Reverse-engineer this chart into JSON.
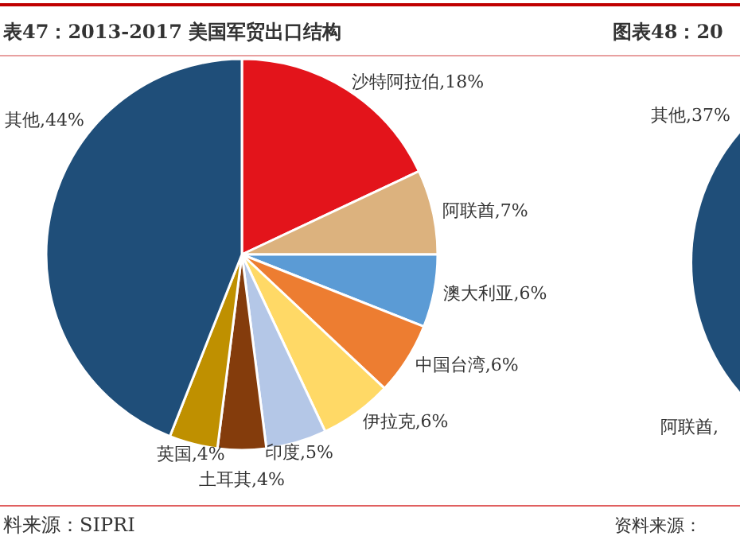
{
  "chart_data": [
    {
      "type": "pie",
      "title": "表47：2013-2017 美国军贸出口结构",
      "categories": [
        "沙特阿拉伯",
        "阿联酋",
        "澳大利亚",
        "中国台湾",
        "伊拉克",
        "印度",
        "土耳其",
        "英国",
        "其他"
      ],
      "values": [
        18,
        7,
        6,
        6,
        6,
        5,
        4,
        4,
        44
      ],
      "value_labels": [
        "18%",
        "7%",
        "6%",
        "6%",
        "6%",
        "5%",
        "4%",
        "4%",
        "44%"
      ],
      "colors": [
        "#e3141b",
        "#dcb27e",
        "#5b9bd5",
        "#ed7d31",
        "#ffd966",
        "#b4c7e7",
        "#843c0c",
        "#bf9000",
        "#1f4e79"
      ],
      "annotations": [
        "料来源：SIPRI"
      ]
    },
    {
      "type": "other",
      "title": "图表48：20",
      "annotations": [
        "其他,37%",
        "阿联酋,",
        "资料来源："
      ]
    }
  ]
}
